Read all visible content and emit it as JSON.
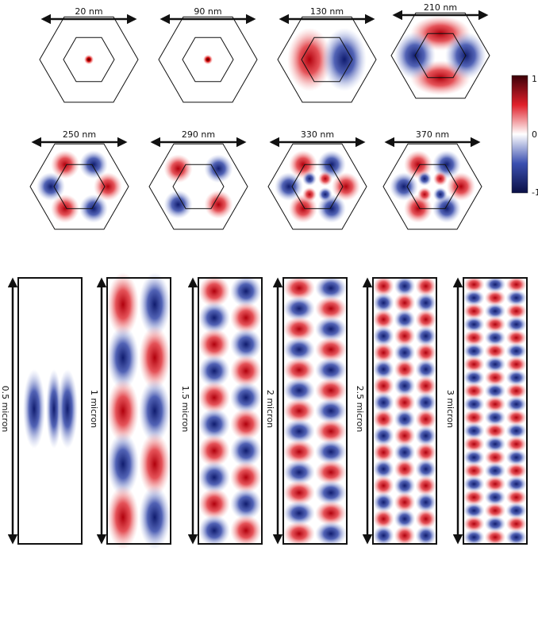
{
  "top_panels": [
    {
      "label": "20 nm"
    },
    {
      "label": "90 nm"
    },
    {
      "label": "130 nm"
    },
    {
      "label": "210 nm"
    },
    {
      "label": "250 nm"
    },
    {
      "label": "290 nm"
    },
    {
      "label": "330 nm"
    },
    {
      "label": "370 nm"
    }
  ],
  "bottom_panels": [
    {
      "label": "0.5 micron"
    },
    {
      "label": "1 micron"
    },
    {
      "label": "1.5 micron"
    },
    {
      "label": "2 micron"
    },
    {
      "label": "2.5 micron"
    },
    {
      "label": "3 micron"
    }
  ],
  "colorbar": {
    "labels": [
      "1",
      "0",
      "-1"
    ]
  }
}
